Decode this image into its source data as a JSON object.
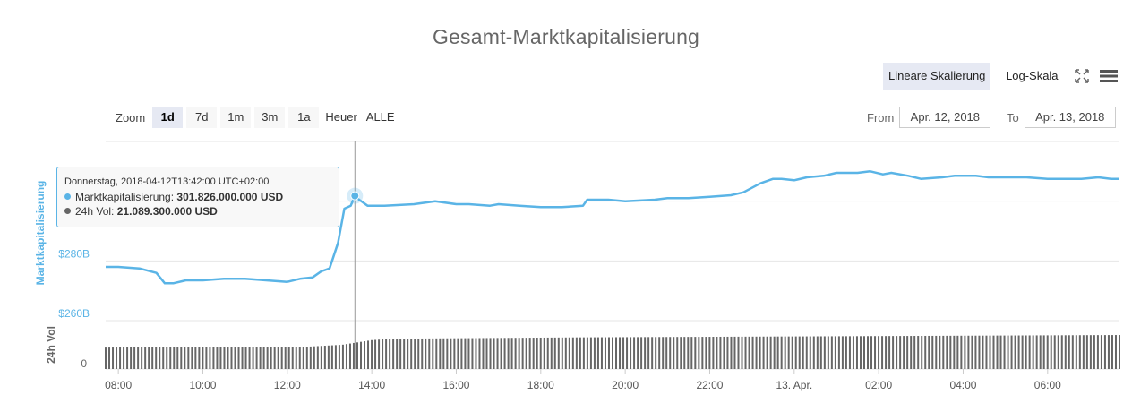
{
  "page": {
    "title": "Gesamt-Marktkapitalisierung"
  },
  "toolbar": {
    "linear_label": "Lineare Skalierung",
    "log_label": "Log-Skala",
    "expand_icon": "expand-icon",
    "menu_icon": "hamburger-menu-icon"
  },
  "zoom": {
    "label": "Zoom",
    "buttons": [
      "1d",
      "7d",
      "1m",
      "3m",
      "1a",
      "Heuer",
      "ALLE"
    ],
    "active": "1d"
  },
  "range": {
    "from_label": "From",
    "from_value": "Apr. 12, 2018",
    "to_label": "To",
    "to_value": "Apr. 13, 2018"
  },
  "tooltip": {
    "header": "Donnerstag, 2018-04-12T13:42:00 UTC+02:00",
    "series1_label": "Marktkapitalisierung: ",
    "series1_value": "301.826.000.000 USD",
    "series2_label": "24h Vol: ",
    "series2_value": "21.089.300.000 USD"
  },
  "colors": {
    "market_cap": "#5ab4e6",
    "volume": "#666666",
    "grid": "#e6e6e6"
  },
  "chart_data": {
    "type": "line",
    "title": "Gesamt-Marktkapitalisierung",
    "xlabel": "",
    "x_ticks": [
      "08:00",
      "10:00",
      "12:00",
      "14:00",
      "16:00",
      "18:00",
      "20:00",
      "22:00",
      "13. Apr.",
      "02:00",
      "04:00",
      "06:00"
    ],
    "hover_x": "2018-04-12T13:42:00",
    "main": {
      "ylabel": "Marktkapitalisierung",
      "y_tick_labels": [
        "$260B",
        "$280B"
      ],
      "y_ticks": [
        260,
        280
      ],
      "ylim": [
        260,
        320
      ],
      "unit": "billion USD",
      "series": [
        {
          "name": "Marktkapitalisierung",
          "x_hours": [
            7.7,
            8.0,
            8.5,
            8.9,
            9.1,
            9.3,
            9.6,
            10.0,
            10.5,
            11.0,
            11.5,
            12.0,
            12.3,
            12.6,
            12.8,
            13.0,
            13.2,
            13.35,
            13.5,
            13.6,
            13.7,
            13.9,
            14.3,
            15.0,
            15.5,
            16.0,
            16.3,
            16.8,
            17.0,
            17.5,
            18.0,
            18.5,
            19.0,
            19.1,
            19.6,
            20.0,
            20.7,
            21.0,
            21.5,
            22.0,
            22.5,
            22.8,
            23.2,
            23.5,
            23.7,
            24.0,
            24.3,
            24.7,
            25.0,
            25.5,
            25.8,
            26.1,
            26.3,
            26.7,
            27.0,
            27.5,
            27.8,
            28.0,
            28.3,
            28.6,
            29.0,
            29.5,
            30.0,
            30.5,
            30.8,
            31.2,
            31.5,
            31.7
          ],
          "values": [
            278.0,
            278.0,
            277.5,
            276.0,
            272.5,
            272.5,
            273.5,
            273.5,
            274.0,
            274.0,
            273.5,
            273.0,
            274.0,
            274.5,
            276.5,
            277.5,
            286.0,
            297.5,
            298.5,
            301.8,
            300.5,
            298.5,
            298.5,
            299.0,
            300.0,
            299.0,
            299.0,
            298.5,
            299.0,
            298.5,
            298.0,
            298.0,
            298.5,
            300.5,
            300.5,
            300.0,
            300.5,
            301.0,
            301.0,
            301.5,
            302.0,
            303.0,
            306.0,
            307.5,
            307.5,
            307.0,
            308.0,
            308.5,
            309.5,
            309.5,
            310.0,
            309.0,
            309.5,
            308.5,
            307.5,
            308.0,
            308.5,
            308.5,
            308.5,
            308.0,
            308.0,
            308.0,
            307.5,
            307.5,
            307.5,
            308.0,
            307.5,
            307.5
          ]
        }
      ]
    },
    "volume": {
      "ylabel": "24h Vol",
      "y_tick_labels": [
        "0"
      ],
      "y_ticks": [
        0
      ],
      "ylim": [
        0,
        100
      ],
      "series": [
        {
          "name": "24h Vol",
          "x_hours": [
            7.7,
            12.5,
            13.3,
            14.0,
            14.5,
            19.0,
            31.7
          ],
          "values": [
            46,
            48,
            52,
            62,
            65,
            68,
            73
          ]
        }
      ]
    }
  }
}
